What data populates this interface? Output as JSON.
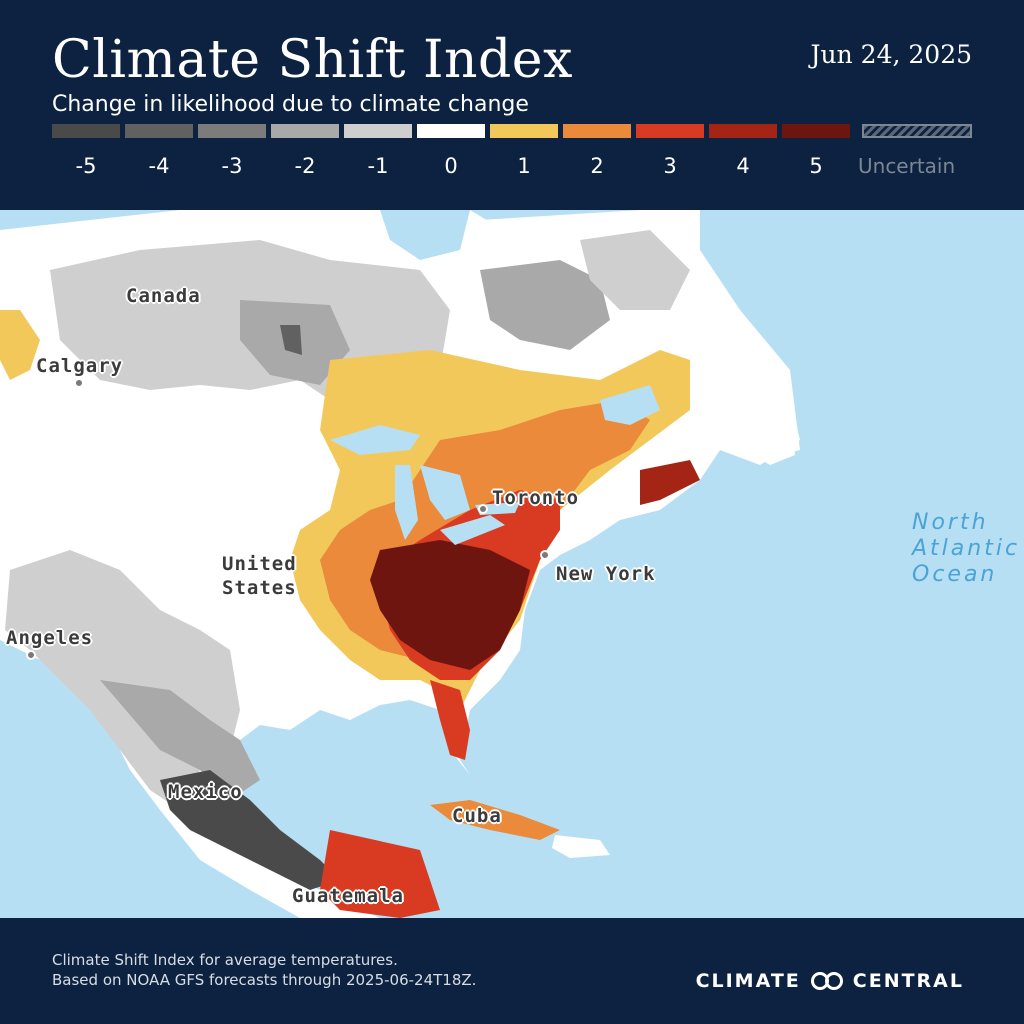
{
  "header": {
    "title": "Climate Shift Index",
    "subtitle": "Change in likelihood due to climate change",
    "date": "Jun 24, 2025"
  },
  "legend": [
    {
      "label": "-5",
      "color": "#4a4a4a"
    },
    {
      "label": "-4",
      "color": "#616161"
    },
    {
      "label": "-3",
      "color": "#7c7c7c"
    },
    {
      "label": "-2",
      "color": "#a9a9a9"
    },
    {
      "label": "-1",
      "color": "#cfcfcf"
    },
    {
      "label": "0",
      "color": "#ffffff"
    },
    {
      "label": "1",
      "color": "#f2c85b"
    },
    {
      "label": "2",
      "color": "#ea8a3a"
    },
    {
      "label": "3",
      "color": "#d93a22"
    },
    {
      "label": "4",
      "color": "#a42416"
    },
    {
      "label": "5",
      "color": "#6e1510"
    },
    {
      "label": "Uncertain",
      "color": "hatched"
    }
  ],
  "map": {
    "labels": {
      "canada": "Canada",
      "calgary": "Calgary",
      "united_states": "United\nStates",
      "los_angeles": "Angeles",
      "toronto": "Toronto",
      "new_york": "New York",
      "mexico": "Mexico",
      "cuba": "Cuba",
      "guatemala": "Guatemala",
      "ocean": "North\nAtlantic\nOcean"
    }
  },
  "footer": {
    "note_line1": "Climate Shift Index for average temperatures.",
    "note_line2": "Based on NOAA GFS forecasts through 2025-06-24T18Z.",
    "brand_left": "CLIMATE",
    "brand_right": "CENTRAL",
    "brand_icon": "linked-rings-icon"
  }
}
